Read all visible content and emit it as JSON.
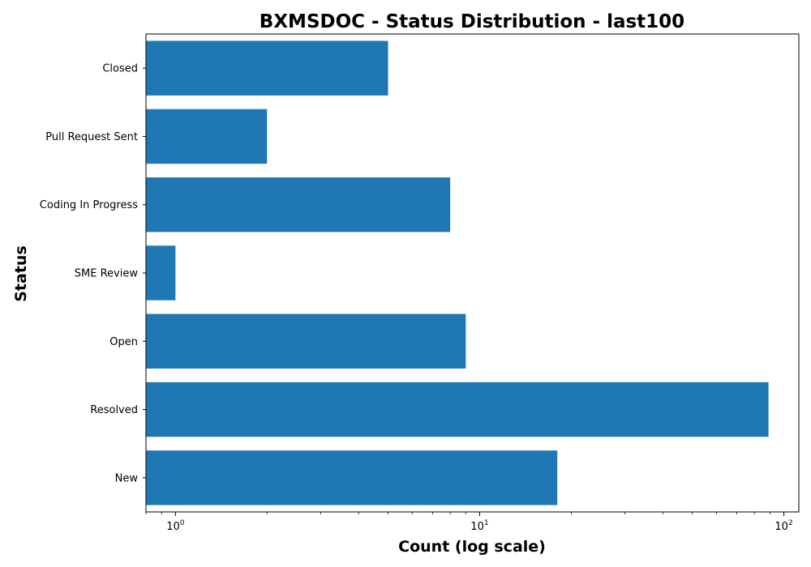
{
  "chart_data": {
    "type": "bar",
    "orientation": "horizontal",
    "title": "BXMSDOC - Status Distribution - last100",
    "xlabel": "Count (log scale)",
    "ylabel": "Status",
    "xscale": "log",
    "xlim": [
      0.8,
      112
    ],
    "x_ticks": [
      {
        "base": "10",
        "exp": "0",
        "value": 1
      },
      {
        "base": "10",
        "exp": "1",
        "value": 10
      },
      {
        "base": "10",
        "exp": "2",
        "value": 100
      }
    ],
    "categories": [
      "Closed",
      "Pull Request Sent",
      "Coding In Progress",
      "SME Review",
      "Open",
      "Resolved",
      "New"
    ],
    "values": [
      5,
      2,
      8,
      1,
      9,
      89,
      18
    ],
    "bar_color": "#1f77b4",
    "grid": false,
    "legend": false
  }
}
